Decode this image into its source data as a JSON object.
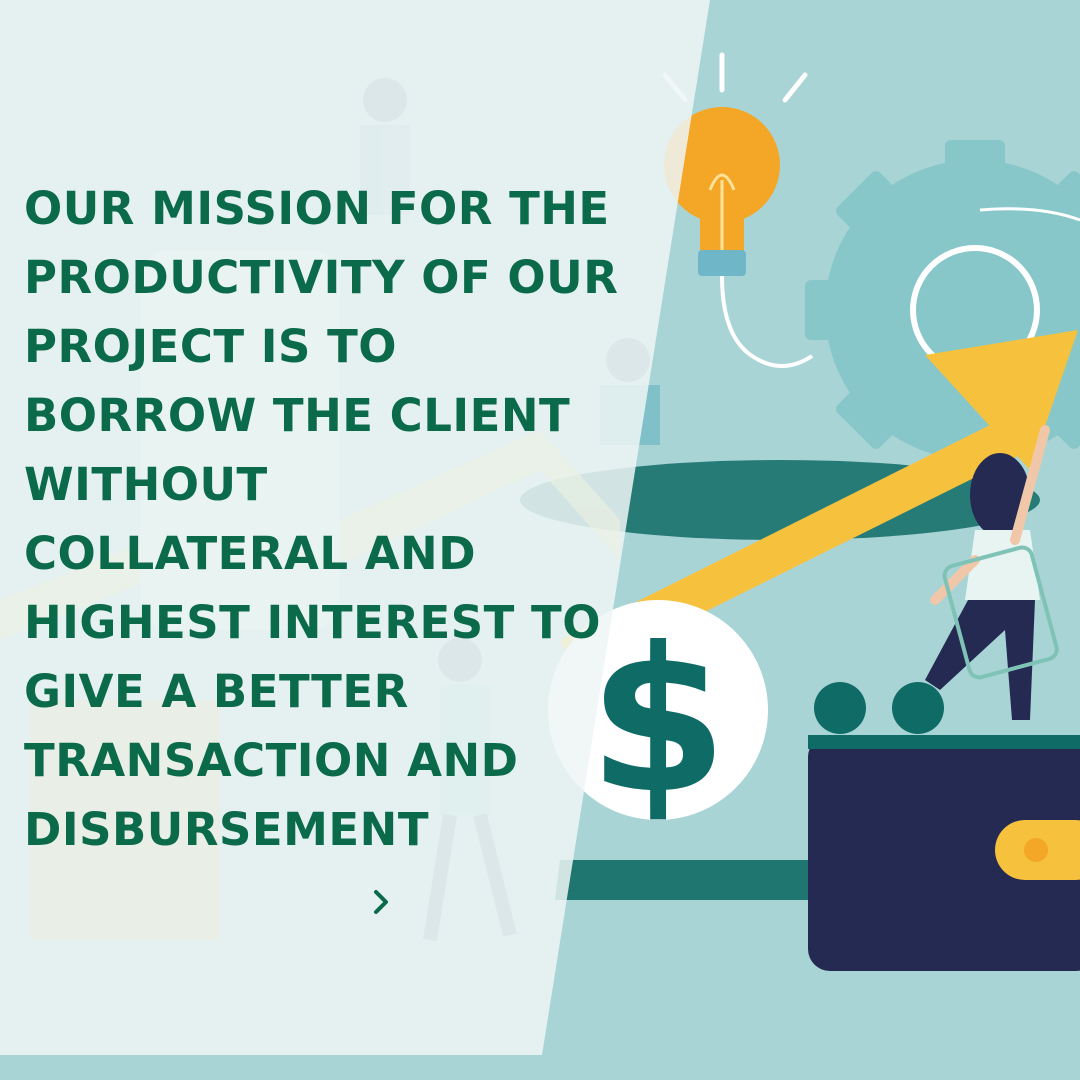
{
  "post": {
    "lines": [
      "OUR MISSION FOR THE",
      "PRODUCTIVITY OF OUR",
      "PROJECT IS TO",
      "BORROW THE CLIENT",
      "WITHOUT",
      "COLLATERAL AND",
      "HIGHEST INTEREST TO",
      "GIVE A BETTER",
      "TRANSACTION AND",
      "DISBURSEMENT"
    ],
    "currency_symbol": "$"
  },
  "next_button": {
    "icon": "chevron-right-icon"
  },
  "colors": {
    "text": "#0a6a4a",
    "background": "#a9d4d6",
    "panel": "#eef6f5",
    "arrow": "#f6c23d",
    "wallet": "#252a52",
    "coin": "#0f6b66",
    "bulb": "#f4a626"
  }
}
